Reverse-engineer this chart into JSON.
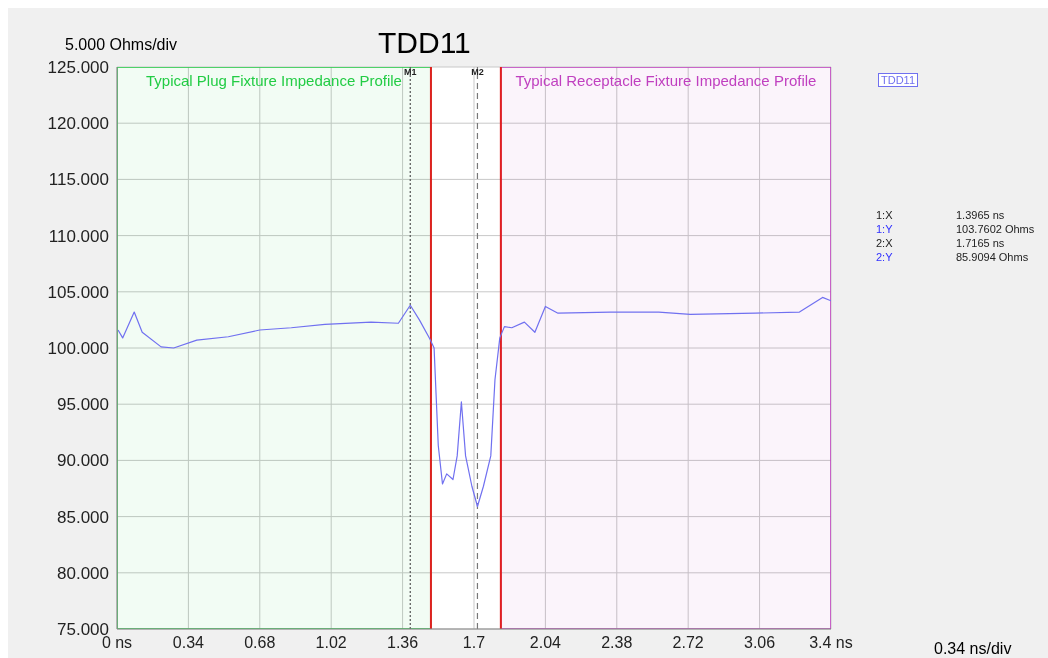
{
  "chart_data": {
    "type": "line",
    "title": "TDD11",
    "annotations": [
      "5.000 Ohms/div",
      "0.34 ns/div",
      "1:X",
      "1.3965 ns",
      "1:Y",
      "103.7602 Ohms",
      "2:X",
      "1.7165 ns",
      "2:Y",
      "85.9094 Ohms"
    ],
    "series": [
      {
        "name": "TDD11",
        "color": "#7070f0",
        "x": [
          0.005,
          0.027,
          0.082,
          0.12,
          0.21,
          0.27,
          0.38,
          0.53,
          0.68,
          0.83,
          0.99,
          1.21,
          1.34,
          1.3965,
          1.44,
          1.49,
          1.51,
          1.53,
          1.55,
          1.57,
          1.6,
          1.62,
          1.64,
          1.66,
          1.69,
          1.7165,
          1.745,
          1.78,
          1.8,
          1.823,
          1.845,
          1.88,
          1.94,
          1.99,
          2.04,
          2.1,
          2.35,
          2.58,
          2.73,
          3.04,
          3.25,
          3.36,
          3.4
        ],
        "values": [
          101.6,
          100.9,
          103.2,
          101.4,
          100.1,
          100.0,
          100.7,
          101.0,
          101.6,
          101.8,
          102.1,
          102.3,
          102.2,
          103.8,
          102.5,
          100.8,
          100.0,
          91.3,
          87.9,
          88.8,
          88.3,
          90.4,
          95.2,
          90.4,
          87.7,
          85.9,
          87.7,
          90.4,
          97.2,
          100.9,
          101.9,
          101.8,
          102.3,
          101.4,
          103.7,
          103.1,
          103.2,
          103.2,
          103.0,
          103.1,
          103.2,
          104.5,
          104.2
        ]
      }
    ],
    "xlim": [
      0,
      3.4
    ],
    "xticks": [
      {
        "value": 0,
        "label": "0 ns"
      },
      0.34,
      0.68,
      1.02,
      1.36,
      1.7,
      2.04,
      2.38,
      2.72,
      3.06,
      {
        "value": 3.4,
        "label": "3.4 ns"
      }
    ],
    "ylim": [
      75,
      125
    ],
    "yticks": [
      {
        "value": 75,
        "label": "75.000"
      },
      {
        "value": 80,
        "label": "80.000"
      },
      {
        "value": 85,
        "label": "85.000"
      },
      {
        "value": 90,
        "label": "90.000"
      },
      {
        "value": 95,
        "label": "95.000"
      },
      {
        "value": 100,
        "label": "100.000"
      },
      {
        "value": 105,
        "label": "105.000"
      },
      {
        "value": 110,
        "label": "110.000"
      },
      {
        "value": 115,
        "label": "115.000"
      },
      {
        "value": 120,
        "label": "120.000"
      },
      {
        "value": 125,
        "label": "125.000"
      }
    ],
    "grid": true,
    "legend": "top right",
    "ref_lines": [
      {
        "axis": "x",
        "value": 1.3965,
        "label": "M1",
        "color": "#555555",
        "line_style": "dotted"
      },
      {
        "axis": "x",
        "value": 1.7165,
        "label": "M2",
        "color": "#777777",
        "line_style": "dashed"
      },
      {
        "axis": "x",
        "value": 1.495,
        "color": "#e02020"
      },
      {
        "axis": "x",
        "value": 1.828,
        "color": "#e02020"
      }
    ],
    "bands": [
      {
        "axis": "x",
        "from": 0,
        "to": 1.495,
        "label": "Typical Plug Fixture Impedance Profile",
        "color": "#22cc44"
      },
      {
        "axis": "x",
        "from": 1.828,
        "to": 3.4,
        "label": "Typical Receptacle Fixture Impedance Profile",
        "color": "#c040c0"
      }
    ]
  }
}
